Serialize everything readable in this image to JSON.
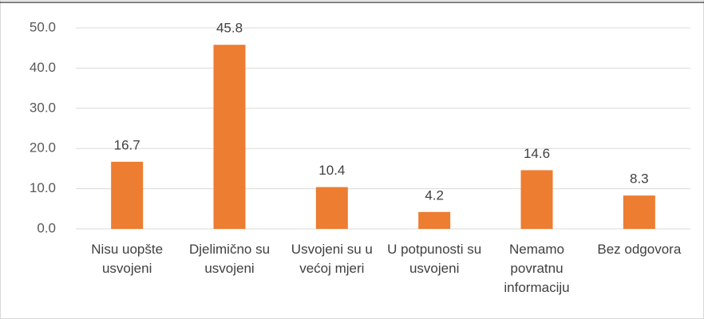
{
  "chart_data": {
    "type": "bar",
    "categories": [
      "Nisu uopšte usvojeni",
      "Djelimično su usvojeni",
      "Usvojeni su u većoj mjeri",
      "U potpunosti su usvojeni",
      "Nemamo povratnu informaciju",
      "Bez odgovora"
    ],
    "values": [
      16.7,
      45.8,
      10.4,
      4.2,
      14.6,
      8.3
    ],
    "color": "#ed7d31",
    "ylim": [
      0,
      50
    ],
    "yticks": [
      {
        "value": 0,
        "label": "0.0"
      },
      {
        "value": 10,
        "label": "10.0"
      },
      {
        "value": 20,
        "label": "20.0"
      },
      {
        "value": 30,
        "label": "30.0"
      },
      {
        "value": 40,
        "label": "40.0"
      },
      {
        "value": 50,
        "label": "50.0"
      }
    ],
    "grid": true
  }
}
